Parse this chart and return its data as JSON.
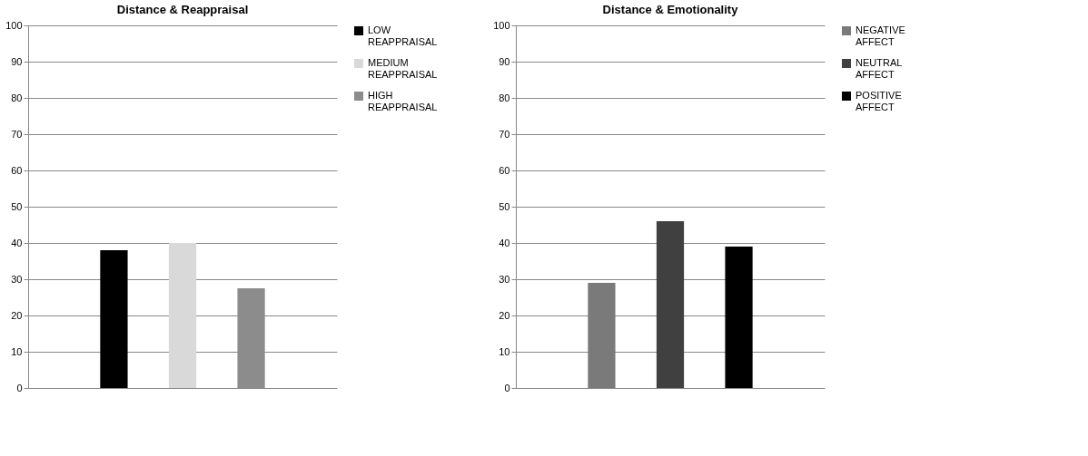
{
  "chart_data": [
    {
      "type": "bar",
      "title": "Distance & Reappraisal",
      "categories": [
        null
      ],
      "series": [
        {
          "name": "LOW REAPPRAISAL",
          "color": "#000000",
          "values": [
            38
          ]
        },
        {
          "name": "MEDIUM REAPPRAISAL",
          "color": "#d9d9d9",
          "values": [
            40
          ]
        },
        {
          "name": "HIGH REAPPRAISAL",
          "color": "#8c8c8c",
          "values": [
            27.5
          ]
        }
      ],
      "ylim": [
        0,
        100
      ],
      "yticks": [
        0,
        10,
        20,
        30,
        40,
        50,
        60,
        70,
        80,
        90,
        100
      ],
      "grid": "y",
      "legend": "right"
    },
    {
      "type": "bar",
      "title": "Distance & Emotionality",
      "categories": [
        null
      ],
      "series": [
        {
          "name": "NEGATIVE AFFECT",
          "color": "#7a7a7a",
          "values": [
            29
          ]
        },
        {
          "name": "NEUTRAL AFFECT",
          "color": "#404040",
          "values": [
            46
          ]
        },
        {
          "name": "POSITIVE AFFECT",
          "color": "#000000",
          "values": [
            39
          ]
        }
      ],
      "ylim": [
        0,
        100
      ],
      "yticks": [
        0,
        10,
        20,
        30,
        40,
        50,
        60,
        70,
        80,
        90,
        100
      ],
      "grid": "y",
      "legend": "right"
    }
  ]
}
